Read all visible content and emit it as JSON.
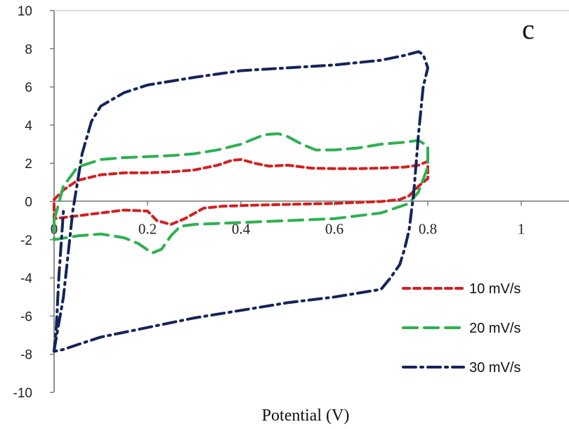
{
  "chart_data": {
    "type": "line",
    "title": "",
    "panel_label": "c",
    "xlabel": "Potential (V)",
    "ylabel": "",
    "xlim": [
      0,
      1.1
    ],
    "ylim": [
      -10,
      10
    ],
    "xticks": [
      0,
      0.2,
      0.4,
      0.6,
      0.8,
      1
    ],
    "xtick_labels": [
      "0",
      "0.2",
      "0.4",
      "0.6",
      "0.8",
      "1"
    ],
    "yticks": [
      -10,
      -8,
      -6,
      -4,
      -2,
      0,
      2,
      4,
      6,
      8,
      10
    ],
    "ytick_labels": [
      "-10",
      "-8",
      "-6",
      "-4",
      "-2",
      "0",
      "2",
      "4",
      "6",
      "8",
      "10"
    ],
    "grid": false,
    "legend_position": "bottom-right",
    "series": [
      {
        "name": "10 mV/s",
        "color": "#d32020",
        "style": "dashed",
        "x": [
          0,
          0.02,
          0.05,
          0.1,
          0.15,
          0.2,
          0.25,
          0.3,
          0.35,
          0.38,
          0.4,
          0.43,
          0.46,
          0.5,
          0.55,
          0.6,
          0.65,
          0.7,
          0.75,
          0.78,
          0.8,
          0.8,
          0.78,
          0.76,
          0.74,
          0.7,
          0.6,
          0.5,
          0.42,
          0.36,
          0.32,
          0.28,
          0.25,
          0.22,
          0.2,
          0.15,
          0.1,
          0.05,
          0.0,
          0.0
        ],
        "y": [
          0.1,
          0.6,
          1.1,
          1.4,
          1.5,
          1.5,
          1.55,
          1.65,
          1.9,
          2.15,
          2.2,
          2.0,
          1.85,
          1.9,
          1.75,
          1.72,
          1.72,
          1.75,
          1.8,
          1.9,
          2.1,
          1.2,
          0.8,
          0.3,
          0.1,
          0.0,
          -0.1,
          -0.15,
          -0.2,
          -0.25,
          -0.35,
          -0.9,
          -1.2,
          -1.0,
          -0.5,
          -0.45,
          -0.6,
          -0.75,
          -0.9,
          0.1
        ]
      },
      {
        "name": "20 mV/s",
        "color": "#2eb050",
        "style": "long-dashed",
        "x": [
          0,
          0.02,
          0.05,
          0.1,
          0.15,
          0.2,
          0.25,
          0.3,
          0.35,
          0.4,
          0.45,
          0.48,
          0.5,
          0.53,
          0.56,
          0.6,
          0.65,
          0.7,
          0.75,
          0.78,
          0.8,
          0.8,
          0.78,
          0.76,
          0.73,
          0.7,
          0.6,
          0.5,
          0.4,
          0.35,
          0.3,
          0.27,
          0.25,
          0.23,
          0.21,
          0.18,
          0.15,
          0.1,
          0.05,
          0.0,
          0.0
        ],
        "y": [
          -1.0,
          0.8,
          1.8,
          2.2,
          2.3,
          2.35,
          2.4,
          2.5,
          2.7,
          3.0,
          3.5,
          3.55,
          3.4,
          3.0,
          2.7,
          2.7,
          2.8,
          3.0,
          3.1,
          3.2,
          2.9,
          1.8,
          0.5,
          -0.1,
          -0.35,
          -0.6,
          -0.9,
          -1.0,
          -1.1,
          -1.15,
          -1.2,
          -1.3,
          -1.8,
          -2.5,
          -2.7,
          -2.2,
          -1.9,
          -1.7,
          -1.8,
          -2.0,
          -1.0
        ]
      },
      {
        "name": "30 mV/s",
        "color": "#15245a",
        "style": "dash-dot",
        "x": [
          0.0,
          0.02,
          0.04,
          0.06,
          0.08,
          0.1,
          0.15,
          0.2,
          0.3,
          0.4,
          0.5,
          0.6,
          0.7,
          0.75,
          0.78,
          0.79,
          0.8,
          0.79,
          0.78,
          0.77,
          0.76,
          0.75,
          0.74,
          0.72,
          0.7,
          0.6,
          0.5,
          0.4,
          0.3,
          0.2,
          0.1,
          0.05,
          0.02,
          0.0,
          0.005,
          0.01,
          0.02
        ],
        "y": [
          -7.8,
          -5.0,
          -0.5,
          2.5,
          4.2,
          5.0,
          5.7,
          6.1,
          6.5,
          6.85,
          7.0,
          7.15,
          7.4,
          7.65,
          7.85,
          7.7,
          7.0,
          6.0,
          3.5,
          0.5,
          -1.5,
          -2.5,
          -3.3,
          -4.0,
          -4.6,
          -5.0,
          -5.3,
          -5.7,
          -6.1,
          -6.6,
          -7.1,
          -7.5,
          -7.75,
          -7.85,
          -6.5,
          -4.0,
          -0.5
        ]
      }
    ]
  }
}
